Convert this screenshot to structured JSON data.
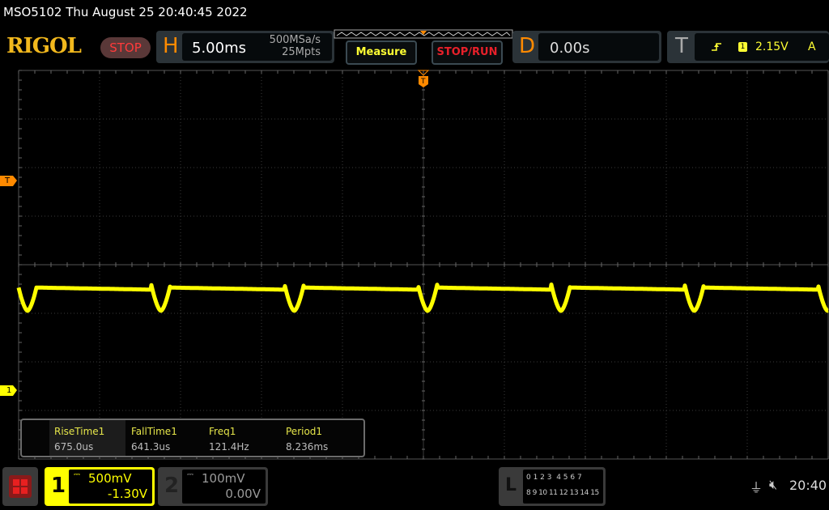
{
  "header": {
    "title": "MSO5102  Thu August 25 20:40:45 2022",
    "logo": "RIGOL",
    "run_state": "STOP"
  },
  "horizontal": {
    "letter": "H",
    "timebase": "5.00ms",
    "sample_rate": "500MSa/s",
    "memory_depth": "25Mpts"
  },
  "buttons": {
    "measure": "Measure",
    "stop_run": "STOP/RUN"
  },
  "delay": {
    "letter": "D",
    "value": "0.00s"
  },
  "trigger": {
    "letter": "T",
    "edge_icon": "rising-edge-icon",
    "source": "1",
    "level": "2.15V",
    "mode": "A"
  },
  "markers": {
    "trigger_level": "T",
    "channel1": "1",
    "trigger_pos": "T"
  },
  "measurements": [
    {
      "label": "RiseTime1",
      "value": "675.0us"
    },
    {
      "label": "FallTime1",
      "value": "641.3us"
    },
    {
      "label": "Freq1",
      "value": "121.4Hz"
    },
    {
      "label": "Period1",
      "value": "8.236ms"
    }
  ],
  "channels": [
    {
      "number": "1",
      "scale": "500mV",
      "offset": "-1.30V",
      "active": true,
      "color": "#ffff00"
    },
    {
      "number": "2",
      "scale": "100mV",
      "offset": "0.00V",
      "active": false,
      "color": "#9a9a9a"
    }
  ],
  "logic": {
    "letter": "L",
    "row1": "0 1 2 3  4 5 6 7",
    "row2": "8 9 10 11 12 13 14 15"
  },
  "status": {
    "usb_icon": "usb-icon",
    "sound_icon": "speaker-muted-icon",
    "clock": "20:40"
  },
  "waveform": {
    "color": "#ffff00",
    "period_ms": 8.236,
    "timebase_ms_per_div": 5
  }
}
